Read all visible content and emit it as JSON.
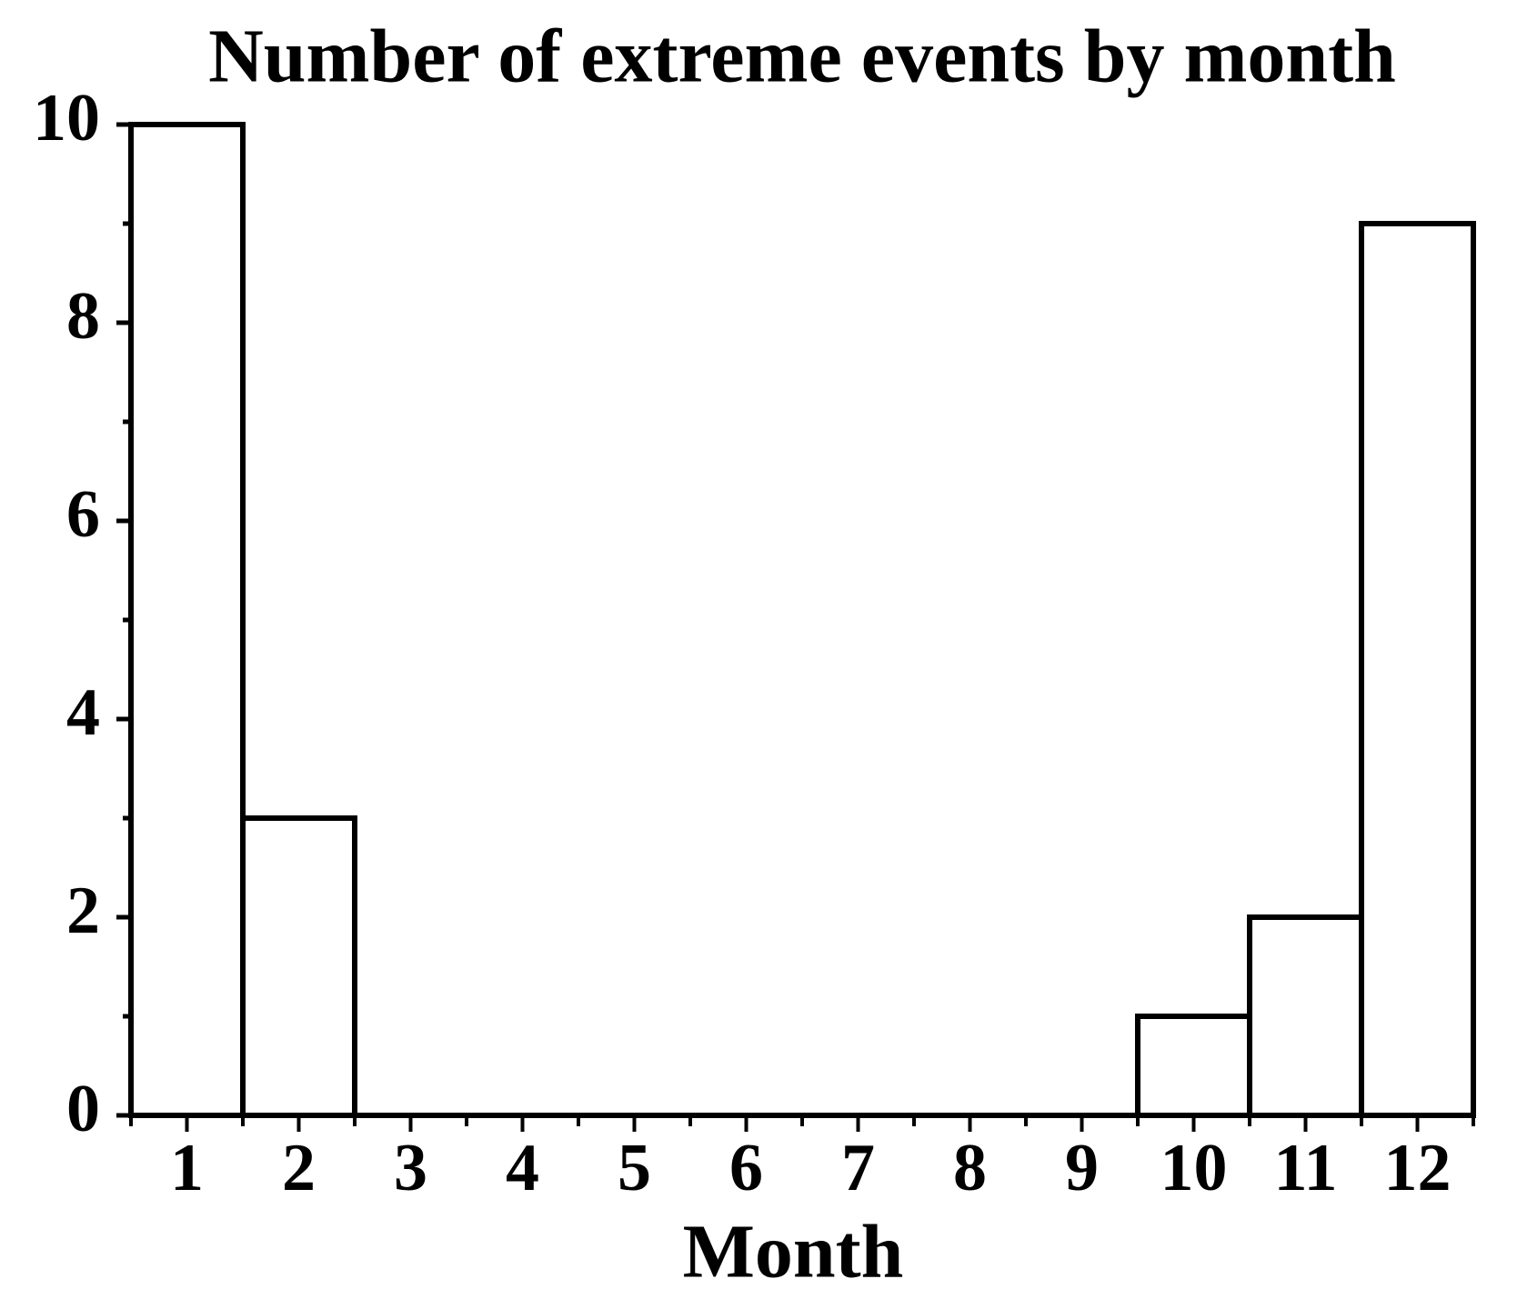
{
  "chart_data": {
    "type": "bar",
    "title": "Number of extreme events by month",
    "x_label": "Month",
    "categories": [
      "1",
      "2",
      "3",
      "4",
      "5",
      "6",
      "7",
      "8",
      "9",
      "10",
      "11",
      "12"
    ],
    "values": [
      10,
      3,
      0,
      0,
      0,
      0,
      0,
      0,
      0,
      1,
      2,
      9
    ],
    "color": "#ffffff",
    "edgecolor": "#000000",
    "ylim": [
      0,
      10
    ],
    "yticks": [
      0,
      2,
      4,
      6,
      8,
      10
    ],
    "yminorticks": [
      1,
      3,
      5,
      7,
      9
    ],
    "grid": false
  }
}
